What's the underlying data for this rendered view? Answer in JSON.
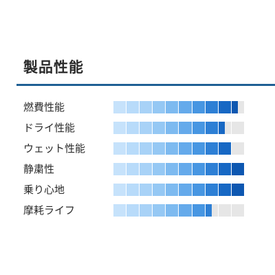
{
  "section": {
    "title": "製品性能"
  },
  "ratings": [
    {
      "label": "燃費性能",
      "level": 0.95
    },
    {
      "label": "ドライ性能",
      "level": 0.85
    },
    {
      "label": "ウェット性能",
      "level": 0.9
    },
    {
      "label": "静粛性",
      "level": 1.0
    },
    {
      "label": "乗り心地",
      "level": 1.0
    },
    {
      "label": "摩耗ライフ",
      "level": 0.75
    }
  ],
  "scale": {
    "segments": 10,
    "colors": [
      "#c6e2fb",
      "#b8dbfa",
      "#a8d2f7",
      "#95c8f4",
      "#7dbaf0",
      "#65aaeb",
      "#4796e2",
      "#2d7fd5",
      "#1768c4",
      "#0d57b1"
    ],
    "empty_color": "#e6e6e6"
  }
}
